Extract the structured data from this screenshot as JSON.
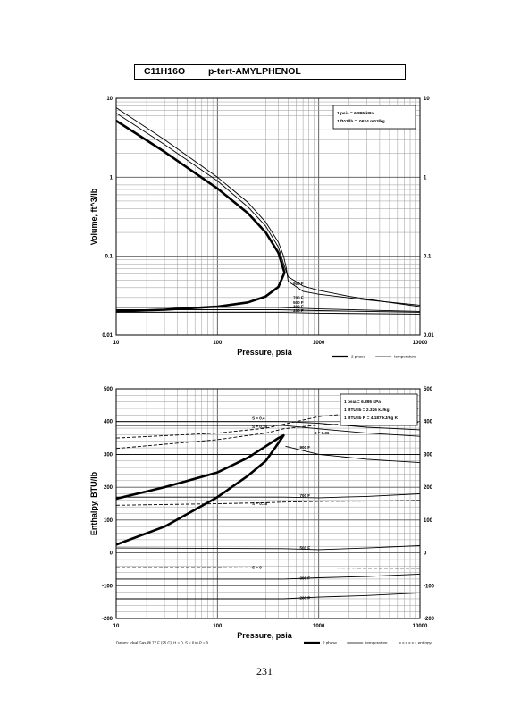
{
  "header": {
    "formula": "C11H16O",
    "compound": "p-tert-AMYLPHENOL"
  },
  "page_number": "231",
  "chart_data": [
    {
      "type": "line",
      "xscale": "log",
      "yscale": "log",
      "xlim": [
        10,
        10000
      ],
      "ylim": [
        0.01,
        10
      ],
      "xlabel": "Pressure,  psia",
      "ylabel": "Volume,  ft^3/lb",
      "x_ticks": [
        "10",
        "100",
        "1000",
        "10000"
      ],
      "y_ticks": [
        "0.01",
        "0.1",
        "1",
        "10"
      ],
      "y_tick_values": [
        0.01,
        0.1,
        1,
        10
      ],
      "grid": true,
      "legend_box": [
        "1 psia  =  6.895 kPa",
        "1 ft^3/lb  =  .0624 m^3/kg"
      ],
      "legend_bottom": [
        {
          "label": "2 phase",
          "style": "thick"
        },
        {
          "label": "temperature",
          "style": "thin"
        }
      ],
      "series": [
        {
          "style": "thick",
          "x": [
            10,
            30,
            100,
            200,
            300,
            400,
            460,
            400,
            300,
            200,
            100,
            30,
            10
          ],
          "y": [
            5.2,
            2.1,
            0.72,
            0.35,
            0.2,
            0.11,
            0.062,
            0.041,
            0.031,
            0.026,
            0.023,
            0.021,
            0.02
          ]
        },
        {
          "style": "thin",
          "x": [
            10,
            30,
            100,
            200,
            300,
            400,
            450,
            500,
            700,
            1000,
            2000,
            5000,
            10000
          ],
          "y": [
            6.5,
            2.6,
            0.9,
            0.42,
            0.24,
            0.13,
            0.08,
            0.055,
            0.042,
            0.037,
            0.031,
            0.026,
            0.023
          ]
        },
        {
          "style": "thin",
          "x": [
            10,
            30,
            100,
            200,
            300,
            400,
            450,
            480,
            500,
            700,
            1000,
            3000,
            10000
          ],
          "y": [
            7.6,
            3.0,
            1.0,
            0.48,
            0.27,
            0.15,
            0.1,
            0.07,
            0.048,
            0.036,
            0.033,
            0.028,
            0.024
          ]
        },
        {
          "style": "thin",
          "x": [
            10,
            400,
            1000,
            10000
          ],
          "y": [
            0.0225,
            0.0225,
            0.0215,
            0.02
          ]
        },
        {
          "style": "thin",
          "x": [
            10,
            400,
            1000,
            10000
          ],
          "y": [
            0.021,
            0.021,
            0.0205,
            0.0195
          ]
        },
        {
          "style": "thin",
          "x": [
            10,
            400,
            1000,
            10000
          ],
          "y": [
            0.0195,
            0.0195,
            0.019,
            0.0185
          ]
        }
      ],
      "annotations": [
        {
          "text": "900 F",
          "x": 560,
          "y": 0.045
        },
        {
          "text": "700 F",
          "x": 560,
          "y": 0.03
        },
        {
          "text": "500 F",
          "x": 560,
          "y": 0.026
        },
        {
          "text": "300 F",
          "x": 560,
          "y": 0.023
        },
        {
          "text": "200 F",
          "x": 560,
          "y": 0.0205
        }
      ]
    },
    {
      "type": "line",
      "xscale": "log",
      "xlim": [
        10,
        10000
      ],
      "ylim": [
        -200,
        500
      ],
      "xlabel": "Pressure,  psia",
      "ylabel": "Enthalpy,  BTU/lb",
      "x_ticks": [
        "10",
        "100",
        "1000",
        "10000"
      ],
      "y_ticks": [
        "-200",
        "-100",
        "0",
        "100",
        "200",
        "300",
        "400",
        "500"
      ],
      "y_tick_values": [
        -200,
        -100,
        0,
        100,
        200,
        300,
        400,
        500
      ],
      "grid": true,
      "legend_box": [
        "1 psia  =  6.895 kPa",
        "1 BTU/lb  =  2.326 kJ/kg",
        "1 BTU/lb R  =  4.187 kJ/kg K"
      ],
      "legend_bottom": [
        {
          "label": "2 phase",
          "style": "thick"
        },
        {
          "label": "temperature",
          "style": "thin"
        },
        {
          "label": "entropy",
          "style": "dashed"
        }
      ],
      "footnote": "Datum: Ideal Gas @ 77 F (25 C),  H = 0,  S = 0 in P = 0",
      "series": [
        {
          "style": "thick",
          "x": [
            10,
            30,
            100,
            200,
            300,
            400,
            450,
            400,
            300,
            200,
            100,
            30,
            10
          ],
          "y": [
            165,
            200,
            245,
            290,
            325,
            350,
            358,
            335,
            280,
            235,
            170,
            80,
            25
          ]
        },
        {
          "style": "thin",
          "x": [
            10,
            450,
            1000,
            3000,
            10000
          ],
          "y": [
            400,
            400,
            395,
            383,
            375
          ]
        },
        {
          "style": "thin",
          "x": [
            10,
            450,
            1000,
            3000,
            10000
          ],
          "y": [
            388,
            388,
            378,
            365,
            355
          ]
        },
        {
          "style": "thin",
          "x": [
            470,
            1000,
            3000,
            10000
          ],
          "y": [
            325,
            300,
            285,
            275
          ]
        },
        {
          "style": "thin",
          "x": [
            10,
            10000
          ],
          "y": [
            300,
            300
          ]
        },
        {
          "style": "thin",
          "x": [
            10,
            450,
            1000,
            3000,
            10000
          ],
          "y": [
            170,
            170,
            168,
            172,
            180
          ]
        },
        {
          "style": "thin",
          "x": [
            10,
            450,
            1000,
            3000,
            10000
          ],
          "y": [
            15,
            13,
            10,
            15,
            22
          ]
        },
        {
          "style": "thin",
          "x": [
            10,
            450,
            1000,
            3000,
            10000
          ],
          "y": [
            -80,
            -80,
            -76,
            -72,
            -65
          ]
        },
        {
          "style": "thin",
          "x": [
            10,
            450,
            1000,
            3000,
            10000
          ],
          "y": [
            -140,
            -140,
            -135,
            -130,
            -122
          ]
        },
        {
          "style": "dashed",
          "x": [
            10,
            100,
            300,
            450,
            1000,
            3000,
            10000
          ],
          "y": [
            350,
            365,
            380,
            392,
            415,
            430,
            440
          ]
        },
        {
          "style": "dashed",
          "x": [
            10,
            100,
            300,
            450,
            1000,
            3000,
            10000
          ],
          "y": [
            318,
            345,
            365,
            378,
            390,
            395,
            398
          ]
        },
        {
          "style": "dashed",
          "x": [
            10,
            100,
            300,
            450,
            1000,
            3000,
            10000
          ],
          "y": [
            145,
            150,
            153,
            155,
            157,
            158,
            160
          ]
        },
        {
          "style": "dashed",
          "x": [
            10,
            100,
            300,
            450,
            1000,
            3000,
            10000
          ],
          "y": [
            -45,
            -45,
            -46,
            -46,
            -46,
            -47,
            -47
          ]
        }
      ],
      "annotations": [
        {
          "text": "S = 0.4",
          "x": 220,
          "y": 410
        },
        {
          "text": "S = 0.38",
          "x": 220,
          "y": 384
        },
        {
          "text": "S = 0.36",
          "x": 900,
          "y": 365
        },
        {
          "text": "900 F",
          "x": 650,
          "y": 322
        },
        {
          "text": "700 F",
          "x": 650,
          "y": 175
        },
        {
          "text": "S = 0.18",
          "x": 220,
          "y": 150
        },
        {
          "text": "500 F",
          "x": 650,
          "y": 15
        },
        {
          "text": "S = 0",
          "x": 220,
          "y": -45
        },
        {
          "text": "300 F",
          "x": 650,
          "y": -78
        },
        {
          "text": "200 F",
          "x": 650,
          "y": -138
        }
      ]
    }
  ]
}
